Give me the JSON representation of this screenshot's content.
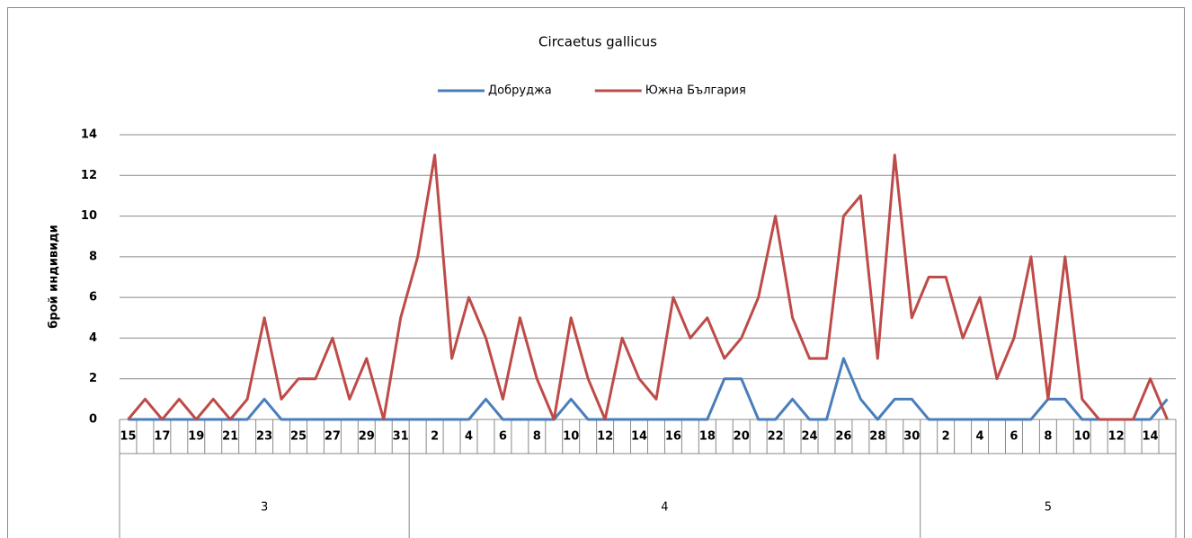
{
  "chart_data": {
    "type": "line",
    "title": "Circaetus gallicus",
    "y_label": "брой индивиди",
    "groups": [
      {
        "name": "3",
        "categories": [
          15,
          null,
          17,
          null,
          19,
          null,
          21,
          null,
          23,
          null,
          25,
          null,
          27,
          null,
          29,
          null,
          31
        ]
      },
      {
        "name": "4",
        "categories": [
          null,
          2,
          null,
          4,
          null,
          6,
          null,
          8,
          null,
          10,
          null,
          12,
          null,
          14,
          null,
          16,
          null,
          18,
          null,
          20,
          null,
          22,
          null,
          24,
          null,
          26,
          null,
          28,
          null,
          30
        ]
      },
      {
        "name": "5",
        "categories": [
          null,
          2,
          null,
          4,
          null,
          6,
          null,
          8,
          null,
          10,
          null,
          12,
          null,
          14,
          null
        ]
      }
    ],
    "series": [
      {
        "name": "Добруджа",
        "color": "#4a7ebb",
        "values": [
          0,
          0,
          0,
          0,
          0,
          0,
          0,
          0,
          1,
          0,
          0,
          0,
          0,
          0,
          0,
          0,
          0,
          0,
          0,
          0,
          0,
          1,
          0,
          0,
          0,
          0,
          1,
          0,
          0,
          0,
          0,
          0,
          0,
          0,
          0,
          2,
          2,
          0,
          0,
          1,
          0,
          0,
          3,
          1,
          0,
          1,
          1,
          0,
          0,
          0,
          0,
          0,
          0,
          0,
          1,
          1,
          0,
          0,
          0,
          0,
          0,
          1
        ]
      },
      {
        "name": "Южна България",
        "color": "#be4b48",
        "values": [
          0,
          1,
          0,
          1,
          0,
          1,
          0,
          1,
          5,
          1,
          2,
          2,
          4,
          1,
          3,
          0,
          5,
          8,
          13,
          3,
          6,
          4,
          1,
          5,
          2,
          0,
          5,
          2,
          0,
          4,
          2,
          1,
          6,
          4,
          5,
          3,
          4,
          6,
          10,
          5,
          3,
          3,
          10,
          11,
          3,
          13,
          5,
          7,
          7,
          4,
          6,
          2,
          4,
          8,
          1,
          8,
          1,
          0,
          0,
          0,
          2,
          0
        ]
      }
    ],
    "ylim": [
      0,
      14
    ],
    "yticks": [
      0,
      2,
      4,
      6,
      8,
      10,
      12,
      14
    ],
    "grid": true,
    "legend": "top"
  }
}
